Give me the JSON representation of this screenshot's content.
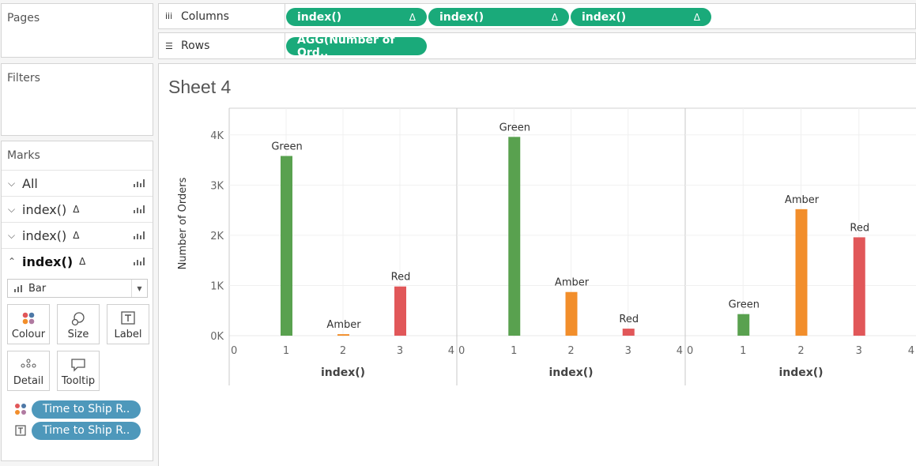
{
  "left_pane": {
    "pages_title": "Pages",
    "filters_title": "Filters",
    "marks_title": "Marks",
    "marks_cards": [
      {
        "label": "All",
        "delta": "",
        "expanded": false,
        "active": false
      },
      {
        "label": "index()",
        "delta": "Δ",
        "expanded": false,
        "active": false
      },
      {
        "label": "index()",
        "delta": "Δ",
        "expanded": false,
        "active": false
      },
      {
        "label": "index()",
        "delta": "Δ",
        "expanded": true,
        "active": true
      }
    ],
    "mark_type": "Bar",
    "buttons": {
      "colour": "Colour",
      "size": "Size",
      "label": "Label",
      "detail": "Detail",
      "tooltip": "Tooltip"
    },
    "pills": [
      {
        "label": "Time to Ship R..",
        "icon": "colour-dots-icon"
      },
      {
        "label": "Time to Ship R..",
        "icon": "label-text-icon"
      }
    ]
  },
  "columns_shelf": {
    "label": "Columns",
    "pills": [
      {
        "label": "index()",
        "delta": "Δ"
      },
      {
        "label": "index()",
        "delta": "Δ"
      },
      {
        "label": "index()",
        "delta": "Δ"
      }
    ]
  },
  "rows_shelf": {
    "label": "Rows",
    "pills": [
      {
        "label": "AGG(Number of Ord.."
      }
    ]
  },
  "sheet": {
    "title": "Sheet 4"
  },
  "colors": {
    "Green": "#59a14f",
    "Amber": "#f28e2b",
    "Red": "#e15759",
    "pill_green": "#1aaa7a",
    "pill_blue": "#4e98bb"
  },
  "chart_data": [
    {
      "type": "bar",
      "xlabel": "index()",
      "ylabel": "Number of Orders",
      "x_ticks": [
        0,
        1,
        2,
        3,
        4
      ],
      "y_ticks": [
        "0K",
        "1K",
        "2K",
        "3K",
        "4K"
      ],
      "ylim": [
        0,
        4500
      ],
      "xlim": [
        0,
        4
      ],
      "points": [
        {
          "x": 1,
          "value": 3580,
          "label": "Green"
        },
        {
          "x": 2,
          "value": 30,
          "label": "Amber"
        },
        {
          "x": 3,
          "value": 980,
          "label": "Red"
        }
      ]
    },
    {
      "type": "bar",
      "xlabel": "index()",
      "ylabel": "Number of Orders",
      "x_ticks": [
        0,
        1,
        2,
        3,
        4
      ],
      "ylim": [
        0,
        4500
      ],
      "xlim": [
        0,
        4
      ],
      "points": [
        {
          "x": 1,
          "value": 3960,
          "label": "Green"
        },
        {
          "x": 2,
          "value": 870,
          "label": "Amber"
        },
        {
          "x": 3,
          "value": 140,
          "label": "Red"
        }
      ]
    },
    {
      "type": "bar",
      "xlabel": "index()",
      "ylabel": "Number of Orders",
      "x_ticks": [
        0,
        1,
        2,
        3,
        4
      ],
      "ylim": [
        0,
        4500
      ],
      "xlim": [
        0,
        4
      ],
      "points": [
        {
          "x": 1,
          "value": 430,
          "label": "Green"
        },
        {
          "x": 2,
          "value": 2520,
          "label": "Amber"
        },
        {
          "x": 3,
          "value": 1960,
          "label": "Red"
        }
      ]
    }
  ]
}
